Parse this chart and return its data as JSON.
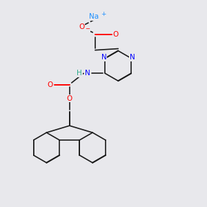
{
  "bg_color": "#e8e8ec",
  "colors": {
    "Na": "#1e90ff",
    "O": "#ff0000",
    "N": "#0000ff",
    "C": "#1a1a1a",
    "H": "#2aaa8a"
  },
  "lw": 1.2,
  "fs": 7.5,
  "sep": 0.006
}
